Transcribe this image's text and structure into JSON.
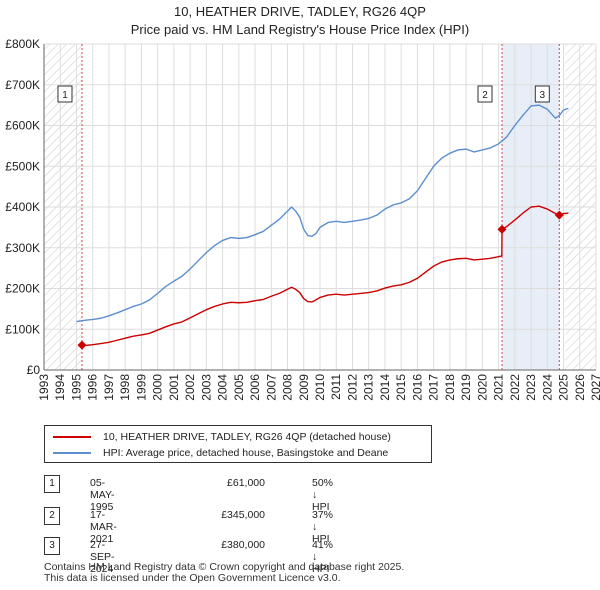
{
  "title": {
    "line1": "10, HEATHER DRIVE, TADLEY, RG26 4QP",
    "line2": "Price paid vs. HM Land Registry's House Price Index (HPI)"
  },
  "colors": {
    "property": "#cc0000",
    "hpi": "#5b8fd0",
    "hatch": "#cfcfcf",
    "grid": "#dddddd",
    "shade": "#e8eef8"
  },
  "legend": {
    "property_label": "10, HEATHER DRIVE, TADLEY, RG26 4QP (detached house)",
    "hpi_label": "HPI: Average price, detached house, Basingstoke and Deane"
  },
  "transactions": [
    {
      "num": "1",
      "date": "05-MAY-1995",
      "price": "£61,000",
      "hpi": "50% ↓ HPI"
    },
    {
      "num": "2",
      "date": "17-MAR-2021",
      "price": "£345,000",
      "hpi": "37% ↓ HPI"
    },
    {
      "num": "3",
      "date": "27-SEP-2024",
      "price": "£380,000",
      "hpi": "41% ↓ HPI"
    }
  ],
  "footer": {
    "line1": "Contains HM Land Registry data © Crown copyright and database right 2025.",
    "line2": "This data is licensed under the Open Government Licence v3.0."
  },
  "chart_data": {
    "type": "line",
    "xlim": [
      1993,
      2027
    ],
    "ylim": [
      0,
      800000
    ],
    "y_ticks": [
      0,
      100000,
      200000,
      300000,
      400000,
      500000,
      600000,
      700000,
      800000
    ],
    "y_tick_labels": [
      "£0",
      "£100K",
      "£200K",
      "£300K",
      "£400K",
      "£500K",
      "£600K",
      "£700K",
      "£800K"
    ],
    "x_ticks": [
      1993,
      1994,
      1995,
      1996,
      1997,
      1998,
      1999,
      2000,
      2001,
      2002,
      2003,
      2004,
      2005,
      2006,
      2007,
      2008,
      2009,
      2010,
      2011,
      2012,
      2013,
      2014,
      2015,
      2016,
      2017,
      2018,
      2019,
      2020,
      2021,
      2022,
      2023,
      2024,
      2025,
      2026,
      2027
    ],
    "hatched_ranges": [
      [
        1993,
        1995.34
      ],
      [
        2025.1,
        2027
      ]
    ],
    "event_lines": [
      {
        "label": "1",
        "x": 1995.34
      },
      {
        "label": "2",
        "x": 2021.21
      },
      {
        "label": "3",
        "x": 2024.74
      }
    ],
    "series": [
      {
        "name": "HPI: Average price, detached house, Basingstoke and Deane",
        "points": [
          [
            1995.0,
            119000
          ],
          [
            1995.5,
            122000
          ],
          [
            1996.0,
            124000
          ],
          [
            1996.5,
            127000
          ],
          [
            1997.0,
            133000
          ],
          [
            1997.5,
            140000
          ],
          [
            1998.0,
            148000
          ],
          [
            1998.5,
            156000
          ],
          [
            1999.0,
            162000
          ],
          [
            1999.5,
            172000
          ],
          [
            2000.0,
            188000
          ],
          [
            2000.5,
            205000
          ],
          [
            2001.0,
            218000
          ],
          [
            2001.5,
            230000
          ],
          [
            2002.0,
            248000
          ],
          [
            2002.5,
            268000
          ],
          [
            2003.0,
            288000
          ],
          [
            2003.5,
            305000
          ],
          [
            2004.0,
            318000
          ],
          [
            2004.5,
            325000
          ],
          [
            2005.0,
            323000
          ],
          [
            2005.5,
            325000
          ],
          [
            2006.0,
            332000
          ],
          [
            2006.5,
            340000
          ],
          [
            2007.0,
            355000
          ],
          [
            2007.5,
            370000
          ],
          [
            2008.0,
            390000
          ],
          [
            2008.25,
            400000
          ],
          [
            2008.5,
            390000
          ],
          [
            2008.75,
            375000
          ],
          [
            2009.0,
            345000
          ],
          [
            2009.25,
            330000
          ],
          [
            2009.5,
            328000
          ],
          [
            2009.75,
            335000
          ],
          [
            2010.0,
            350000
          ],
          [
            2010.5,
            362000
          ],
          [
            2011.0,
            365000
          ],
          [
            2011.5,
            362000
          ],
          [
            2012.0,
            365000
          ],
          [
            2012.5,
            368000
          ],
          [
            2013.0,
            372000
          ],
          [
            2013.5,
            380000
          ],
          [
            2014.0,
            395000
          ],
          [
            2014.5,
            405000
          ],
          [
            2015.0,
            410000
          ],
          [
            2015.5,
            420000
          ],
          [
            2016.0,
            440000
          ],
          [
            2016.5,
            470000
          ],
          [
            2017.0,
            500000
          ],
          [
            2017.5,
            520000
          ],
          [
            2018.0,
            532000
          ],
          [
            2018.5,
            540000
          ],
          [
            2019.0,
            542000
          ],
          [
            2019.5,
            535000
          ],
          [
            2020.0,
            540000
          ],
          [
            2020.5,
            545000
          ],
          [
            2021.0,
            555000
          ],
          [
            2021.5,
            572000
          ],
          [
            2022.0,
            600000
          ],
          [
            2022.5,
            625000
          ],
          [
            2023.0,
            648000
          ],
          [
            2023.5,
            650000
          ],
          [
            2024.0,
            640000
          ],
          [
            2024.5,
            618000
          ],
          [
            2024.75,
            625000
          ],
          [
            2025.0,
            638000
          ],
          [
            2025.3,
            642000
          ]
        ]
      },
      {
        "name": "10, HEATHER DRIVE, TADLEY, RG26 4QP (detached house)",
        "points": [
          [
            1995.34,
            61000
          ],
          [
            1995.5,
            60000
          ],
          [
            1996.0,
            62000
          ],
          [
            1996.5,
            65000
          ],
          [
            1997.0,
            68000
          ],
          [
            1997.5,
            73000
          ],
          [
            1998.0,
            78000
          ],
          [
            1998.5,
            83000
          ],
          [
            1999.0,
            86000
          ],
          [
            1999.5,
            90000
          ],
          [
            2000.0,
            98000
          ],
          [
            2000.5,
            106000
          ],
          [
            2001.0,
            113000
          ],
          [
            2001.5,
            118000
          ],
          [
            2002.0,
            128000
          ],
          [
            2002.5,
            138000
          ],
          [
            2003.0,
            148000
          ],
          [
            2003.5,
            156000
          ],
          [
            2004.0,
            162000
          ],
          [
            2004.5,
            166000
          ],
          [
            2005.0,
            165000
          ],
          [
            2005.5,
            166000
          ],
          [
            2006.0,
            170000
          ],
          [
            2006.5,
            173000
          ],
          [
            2007.0,
            181000
          ],
          [
            2007.5,
            188000
          ],
          [
            2008.0,
            198000
          ],
          [
            2008.25,
            203000
          ],
          [
            2008.5,
            198000
          ],
          [
            2008.75,
            190000
          ],
          [
            2009.0,
            175000
          ],
          [
            2009.25,
            168000
          ],
          [
            2009.5,
            167000
          ],
          [
            2009.75,
            172000
          ],
          [
            2010.0,
            178000
          ],
          [
            2010.5,
            184000
          ],
          [
            2011.0,
            186000
          ],
          [
            2011.5,
            184000
          ],
          [
            2012.0,
            186000
          ],
          [
            2012.5,
            188000
          ],
          [
            2013.0,
            190000
          ],
          [
            2013.5,
            194000
          ],
          [
            2014.0,
            201000
          ],
          [
            2014.5,
            206000
          ],
          [
            2015.0,
            209000
          ],
          [
            2015.5,
            215000
          ],
          [
            2016.0,
            225000
          ],
          [
            2016.5,
            240000
          ],
          [
            2017.0,
            255000
          ],
          [
            2017.5,
            265000
          ],
          [
            2018.0,
            270000
          ],
          [
            2018.5,
            273000
          ],
          [
            2019.0,
            274000
          ],
          [
            2019.5,
            270000
          ],
          [
            2020.0,
            272000
          ],
          [
            2020.5,
            274000
          ],
          [
            2021.0,
            278000
          ],
          [
            2021.2,
            280000
          ],
          [
            2021.21,
            345000
          ],
          [
            2021.5,
            352000
          ],
          [
            2022.0,
            368000
          ],
          [
            2022.5,
            385000
          ],
          [
            2023.0,
            400000
          ],
          [
            2023.5,
            402000
          ],
          [
            2024.0,
            395000
          ],
          [
            2024.5,
            384000
          ],
          [
            2024.74,
            380000
          ],
          [
            2025.0,
            384000
          ],
          [
            2025.3,
            385000
          ]
        ]
      }
    ],
    "markers": [
      {
        "label": "1",
        "x": 1995.34,
        "y": 61000
      },
      {
        "label": "2",
        "x": 2021.21,
        "y": 345000
      },
      {
        "label": "3",
        "x": 2024.74,
        "y": 380000
      }
    ]
  }
}
